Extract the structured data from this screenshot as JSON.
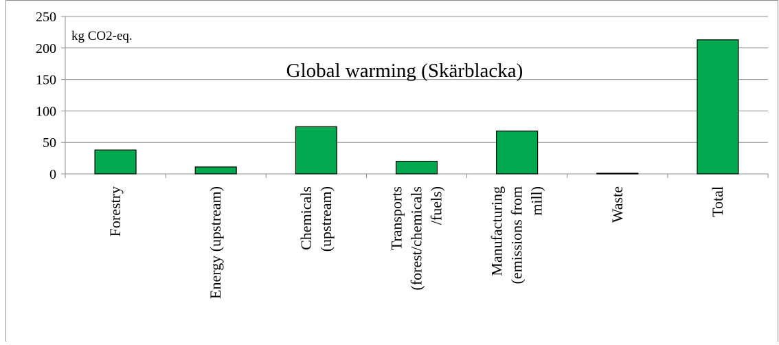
{
  "chart_data": {
    "type": "bar",
    "title": "Global warming (Skärblacka)",
    "unit_label": "kg CO2-eq.",
    "xlabel": "",
    "ylabel": "",
    "ylim": [
      0,
      250
    ],
    "yticks": [
      0,
      50,
      100,
      150,
      200,
      250
    ],
    "grid": true,
    "legend": "none",
    "bar_color": "#00a84f",
    "categories": [
      [
        "Forestry"
      ],
      [
        "Energy (upstream)"
      ],
      [
        "Chemicals",
        "(upstream)"
      ],
      [
        "Transports",
        "(forest/chemicals",
        "/fuels)"
      ],
      [
        "Manufacturing",
        "(emissions from",
        "mill)"
      ],
      [
        "Waste"
      ],
      [
        "Total"
      ]
    ],
    "values": [
      38,
      11,
      75,
      20,
      68,
      1,
      213
    ]
  }
}
